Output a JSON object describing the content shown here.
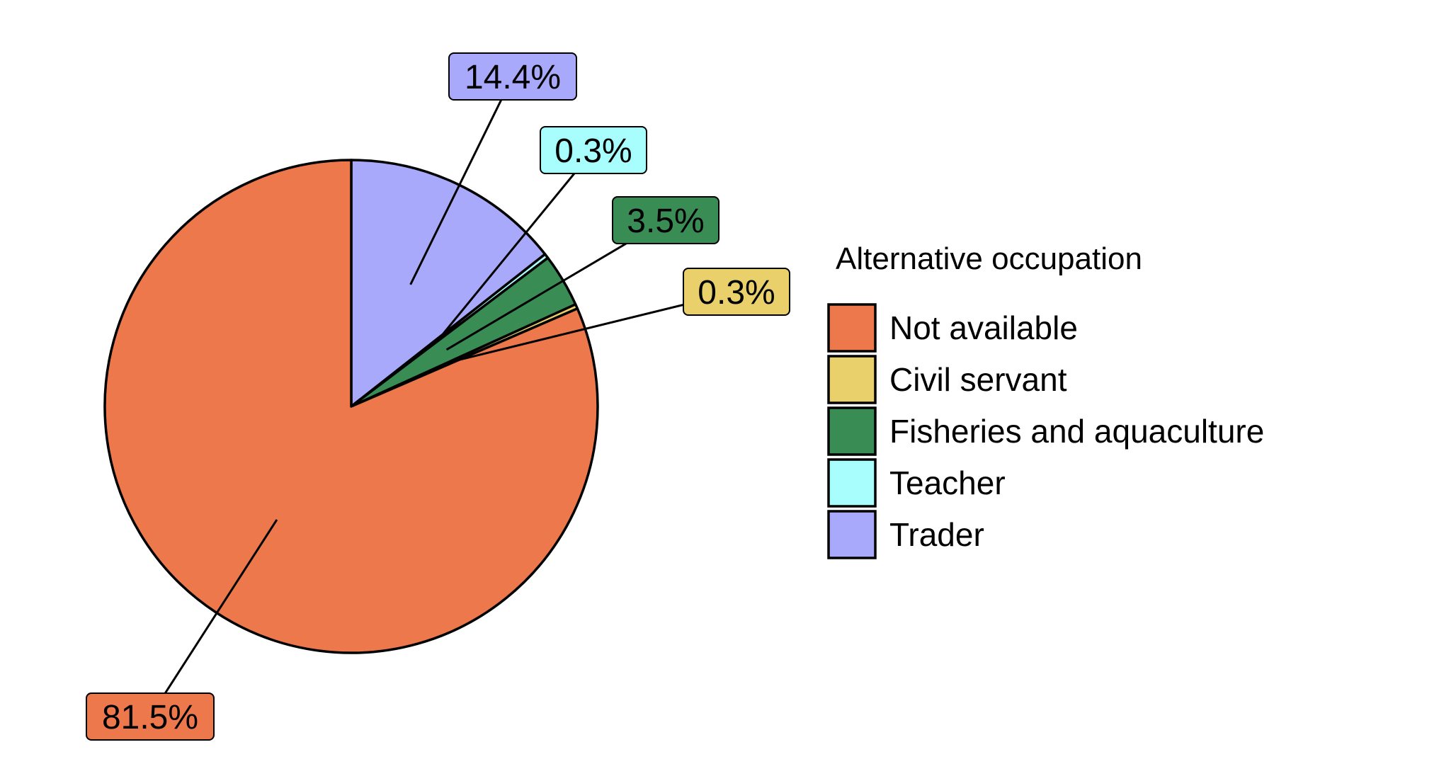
{
  "chart_data": {
    "type": "pie",
    "legend_title": "Alternative occupation",
    "legend_position": "right",
    "slices": [
      {
        "name": "Not available",
        "value": 81.5,
        "label": "81.5%",
        "color": "#EC784C"
      },
      {
        "name": "Civil servant",
        "value": 0.3,
        "label": "0.3%",
        "color": "#EAD06A"
      },
      {
        "name": "Fisheries and aquaculture",
        "value": 3.5,
        "label": "3.5%",
        "color": "#3A8C55"
      },
      {
        "name": "Teacher",
        "value": 0.3,
        "label": "0.3%",
        "color": "#A8FEFC"
      },
      {
        "name": "Trader",
        "value": 14.4,
        "label": "14.4%",
        "color": "#A9A9FB"
      }
    ]
  }
}
